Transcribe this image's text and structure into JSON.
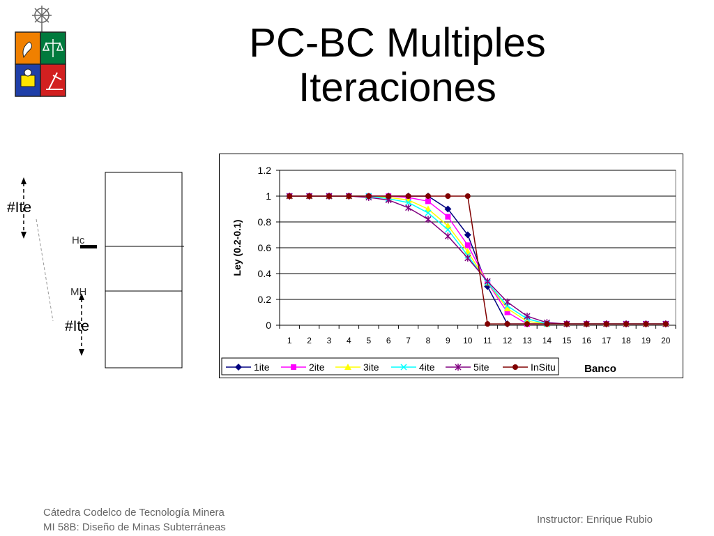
{
  "slide": {
    "title_line1": "PC-BC Multiples",
    "title_line2": "Iteraciones"
  },
  "diagram": {
    "label_ite_top": "#Ite",
    "label_hc": "Hc",
    "label_mh": "MH",
    "label_ite_bottom": "#Ite"
  },
  "footer": {
    "line1": "Cátedra Codelco de Tecnología Minera",
    "line2": "MI 58B: Diseño de Minas Subterráneas",
    "instructor": "Instructor: Enrique Rubio"
  },
  "chart_data": {
    "type": "line",
    "title": "",
    "xlabel": "Banco",
    "ylabel": "Ley (0.2-0.1)",
    "ylim": [
      0,
      1.2
    ],
    "yticks": [
      "0",
      "0.2",
      "0.4",
      "0.6",
      "0.8",
      "1",
      "1.2"
    ],
    "grid": true,
    "legend_position": "bottom",
    "categories": [
      "1",
      "2",
      "3",
      "4",
      "5",
      "6",
      "7",
      "8",
      "9",
      "10",
      "11",
      "12",
      "13",
      "14",
      "15",
      "16",
      "17",
      "18",
      "19",
      "20"
    ],
    "series": [
      {
        "name": "1ite",
        "color": "#000080",
        "marker": "diamond",
        "values": [
          1,
          1,
          1,
          1,
          1,
          1,
          1,
          1,
          0.9,
          0.7,
          0.3,
          0.01,
          0.01,
          0.01,
          0.01,
          0.01,
          0.01,
          0.01,
          0.01,
          0.01
        ]
      },
      {
        "name": "2ite",
        "color": "#ff00ff",
        "marker": "square",
        "values": [
          1,
          1,
          1,
          1,
          1,
          1,
          0.99,
          0.96,
          0.84,
          0.62,
          0.33,
          0.1,
          0.01,
          0.01,
          0.01,
          0.01,
          0.01,
          0.01,
          0.01,
          0.01
        ]
      },
      {
        "name": "3ite",
        "color": "#ffff00",
        "marker": "triangle",
        "values": [
          1,
          1,
          1,
          1,
          1,
          0.99,
          0.97,
          0.9,
          0.77,
          0.57,
          0.33,
          0.13,
          0.03,
          0.01,
          0.01,
          0.01,
          0.01,
          0.01,
          0.01,
          0.01
        ]
      },
      {
        "name": "4ite",
        "color": "#00ffff",
        "marker": "x",
        "values": [
          1,
          1,
          1,
          1,
          1,
          0.98,
          0.95,
          0.87,
          0.74,
          0.54,
          0.33,
          0.15,
          0.05,
          0.01,
          0.01,
          0.01,
          0.01,
          0.01,
          0.01,
          0.01
        ]
      },
      {
        "name": "5ite",
        "color": "#800080",
        "marker": "star",
        "values": [
          1,
          1,
          1,
          1,
          0.99,
          0.97,
          0.91,
          0.82,
          0.69,
          0.52,
          0.34,
          0.18,
          0.07,
          0.02,
          0.01,
          0.01,
          0.01,
          0.01,
          0.01,
          0.01
        ]
      },
      {
        "name": "InSitu",
        "color": "#800000",
        "marker": "circle",
        "values": [
          1,
          1,
          1,
          1,
          1,
          1,
          1,
          1,
          1,
          1,
          0.01,
          0.01,
          0.01,
          0.01,
          0.01,
          0.01,
          0.01,
          0.01,
          0.01,
          0.01
        ]
      }
    ]
  }
}
